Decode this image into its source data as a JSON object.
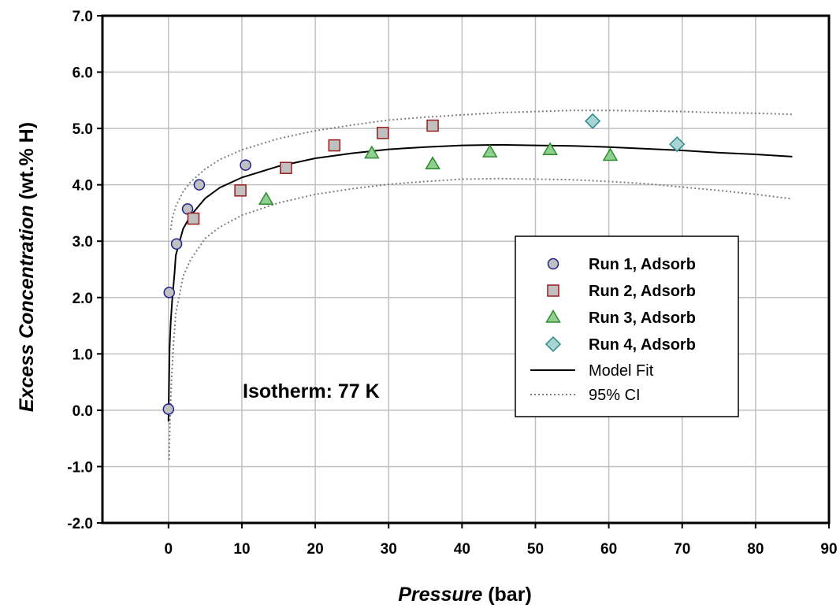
{
  "chart_data": {
    "type": "scatter",
    "xlabel_italic": "Pressure",
    "xlabel_rest": " (bar)",
    "ylabel_italic": "Excess Concentration",
    "ylabel_rest": " (wt.% H)",
    "xlim": [
      -9,
      90
    ],
    "ylim": [
      -2.0,
      7.0
    ],
    "x_ticks": [
      0,
      10,
      20,
      30,
      40,
      50,
      60,
      70,
      80,
      90
    ],
    "x_tick_labels": [
      "0",
      "10",
      "20",
      "30",
      "40",
      "50",
      "60",
      "70",
      "80",
      "90"
    ],
    "y_ticks": [
      -2.0,
      -1.0,
      0.0,
      1.0,
      2.0,
      3.0,
      4.0,
      5.0,
      6.0,
      7.0
    ],
    "y_tick_labels": [
      "-2.0",
      "-1.0",
      "0.0",
      "1.0",
      "2.0",
      "3.0",
      "4.0",
      "5.0",
      "6.0",
      "7.0"
    ],
    "grid": true,
    "legend_position": "right",
    "annotation": "Isotherm:  77 K",
    "series": [
      {
        "name": "Run 1, Adsorb",
        "marker": "circle",
        "fill": "#c0c0c0",
        "stroke": "#1f1f8f",
        "points": [
          [
            0.0,
            0.02
          ],
          [
            0.1,
            2.09
          ],
          [
            1.1,
            2.95
          ],
          [
            2.6,
            3.57
          ],
          [
            4.2,
            4.0
          ],
          [
            10.5,
            4.35
          ]
        ]
      },
      {
        "name": "Run 2, Adsorb",
        "marker": "square",
        "fill": "#c0c0c0",
        "stroke": "#9b1c1c",
        "points": [
          [
            3.4,
            3.4
          ],
          [
            9.8,
            3.9
          ],
          [
            16.0,
            4.3
          ],
          [
            22.6,
            4.7
          ],
          [
            29.2,
            4.92
          ],
          [
            36.0,
            5.05
          ]
        ]
      },
      {
        "name": "Run 3, Adsorb",
        "marker": "triangle",
        "fill": "#8fcf8f",
        "stroke": "#2e8b2e",
        "points": [
          [
            13.3,
            3.74
          ],
          [
            27.7,
            4.56
          ],
          [
            36.0,
            4.37
          ],
          [
            43.8,
            4.58
          ],
          [
            52.0,
            4.62
          ],
          [
            60.2,
            4.52
          ]
        ]
      },
      {
        "name": "Run 4, Adsorb",
        "marker": "diamond",
        "fill": "#a9d4d4",
        "stroke": "#2a8a8a",
        "points": [
          [
            57.8,
            5.13
          ],
          [
            69.3,
            4.72
          ]
        ]
      },
      {
        "name": "Model Fit",
        "line": "solid",
        "stroke": "#000000",
        "points": [
          [
            0.0,
            -0.2
          ],
          [
            0.15,
            1.1
          ],
          [
            0.3,
            1.55
          ],
          [
            0.5,
            1.95
          ],
          [
            0.8,
            2.4
          ],
          [
            1.0,
            2.75
          ],
          [
            2.0,
            3.22
          ],
          [
            3.0,
            3.45
          ],
          [
            5.0,
            3.76
          ],
          [
            7.0,
            3.95
          ],
          [
            10.0,
            4.13
          ],
          [
            15.0,
            4.33
          ],
          [
            20.0,
            4.47
          ],
          [
            25.0,
            4.56
          ],
          [
            30.0,
            4.63
          ],
          [
            35.0,
            4.67
          ],
          [
            40.0,
            4.7
          ],
          [
            45.0,
            4.71
          ],
          [
            50.0,
            4.7
          ],
          [
            55.0,
            4.69
          ],
          [
            60.0,
            4.67
          ],
          [
            65.0,
            4.64
          ],
          [
            70.0,
            4.61
          ],
          [
            75.0,
            4.57
          ],
          [
            80.0,
            4.54
          ],
          [
            85.0,
            4.5
          ]
        ]
      },
      {
        "name": "95% CI",
        "line": "dotted",
        "stroke": "#808080",
        "points": [
          [
            0.3,
            3.2
          ],
          [
            0.5,
            3.4
          ],
          [
            1.0,
            3.62
          ],
          [
            2.0,
            3.88
          ],
          [
            3.0,
            4.05
          ],
          [
            5.0,
            4.28
          ],
          [
            7.0,
            4.45
          ],
          [
            10.0,
            4.62
          ],
          [
            15.0,
            4.82
          ],
          [
            20.0,
            4.96
          ],
          [
            25.0,
            5.06
          ],
          [
            30.0,
            5.15
          ],
          [
            35.0,
            5.2
          ],
          [
            40.0,
            5.24
          ],
          [
            45.0,
            5.28
          ],
          [
            50.0,
            5.3
          ],
          [
            55.0,
            5.32
          ],
          [
            60.0,
            5.32
          ],
          [
            65.0,
            5.31
          ],
          [
            70.0,
            5.3
          ],
          [
            75.0,
            5.28
          ],
          [
            80.0,
            5.27
          ],
          [
            85.0,
            5.25
          ]
        ],
        "lower": [
          [
            0.1,
            -0.88
          ],
          [
            0.2,
            -0.2
          ],
          [
            0.4,
            0.5
          ],
          [
            0.7,
            1.2
          ],
          [
            1.0,
            1.72
          ],
          [
            2.0,
            2.38
          ],
          [
            3.0,
            2.67
          ],
          [
            5.0,
            3.05
          ],
          [
            7.0,
            3.25
          ],
          [
            10.0,
            3.46
          ],
          [
            15.0,
            3.68
          ],
          [
            20.0,
            3.83
          ],
          [
            25.0,
            3.93
          ],
          [
            30.0,
            4.01
          ],
          [
            35.0,
            4.06
          ],
          [
            40.0,
            4.1
          ],
          [
            45.0,
            4.11
          ],
          [
            50.0,
            4.1
          ],
          [
            55.0,
            4.09
          ],
          [
            60.0,
            4.06
          ],
          [
            65.0,
            4.02
          ],
          [
            70.0,
            3.96
          ],
          [
            75.0,
            3.9
          ],
          [
            80.0,
            3.83
          ],
          [
            85.0,
            3.75
          ]
        ]
      }
    ]
  }
}
